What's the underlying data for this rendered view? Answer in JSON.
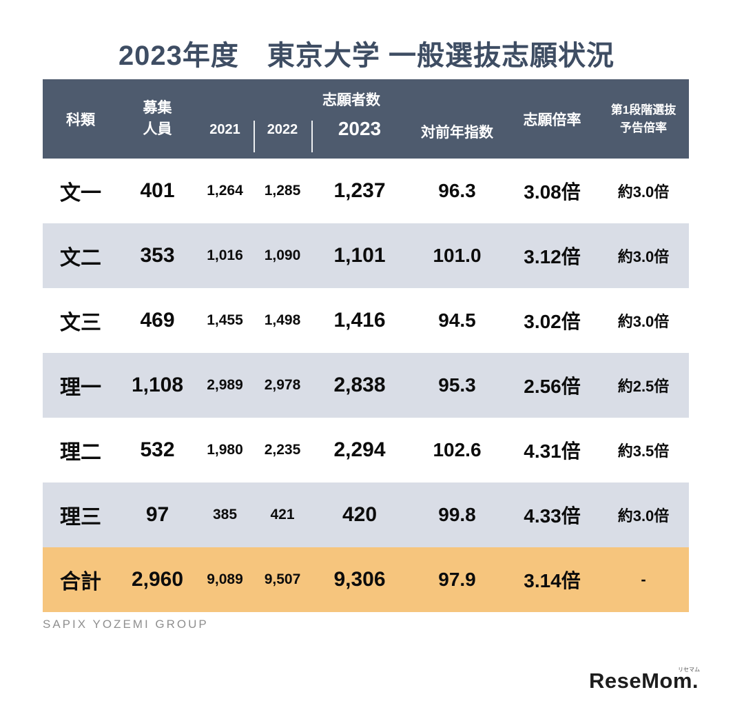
{
  "title": "2023年度　東京大学 一般選抜志願状況",
  "header": {
    "category": "科類",
    "capacity_l1": "募集",
    "capacity_l2": "人員",
    "applicants_group": "志願者数",
    "y2021": "2021",
    "y2022": "2022",
    "y2023": "2023",
    "yoy": "対前年指数",
    "ratio": "志願倍率",
    "first_stage_l1": "第1段階選抜",
    "first_stage_l2": "予告倍率"
  },
  "chart_data": {
    "type": "table",
    "title": "2023年度　東京大学 一般選抜志願状況",
    "columns": [
      "科類",
      "募集人員",
      "志願者数 2021",
      "志願者数 2022",
      "志願者数 2023",
      "対前年指数",
      "志願倍率",
      "第1段階選抜予告倍率"
    ],
    "rows": [
      [
        "文一",
        "401",
        "1,264",
        "1,285",
        "1,237",
        "96.3",
        "3.08倍",
        "約3.0倍"
      ],
      [
        "文二",
        "353",
        "1,016",
        "1,090",
        "1,101",
        "101.0",
        "3.12倍",
        "約3.0倍"
      ],
      [
        "文三",
        "469",
        "1,455",
        "1,498",
        "1,416",
        "94.5",
        "3.02倍",
        "約3.0倍"
      ],
      [
        "理一",
        "1,108",
        "2,989",
        "2,978",
        "2,838",
        "95.3",
        "2.56倍",
        "約2.5倍"
      ],
      [
        "理二",
        "532",
        "1,980",
        "2,235",
        "2,294",
        "102.6",
        "4.31倍",
        "約3.5倍"
      ],
      [
        "理三",
        "97",
        "385",
        "421",
        "420",
        "99.8",
        "4.33倍",
        "約3.0倍"
      ],
      [
        "合計",
        "2,960",
        "9,089",
        "9,507",
        "9,306",
        "97.9",
        "3.14倍",
        "-"
      ]
    ]
  },
  "colors": {
    "header_bg": "#4e5b6e",
    "alt_row_bg": "#d9dde6",
    "total_row_bg": "#f6c57d",
    "title_color": "#3e4d63"
  },
  "footer": {
    "brand": "SAPIX YOZEMI GROUP"
  },
  "logo": {
    "main": "ReseMom.",
    "ruby": "リセマム"
  }
}
